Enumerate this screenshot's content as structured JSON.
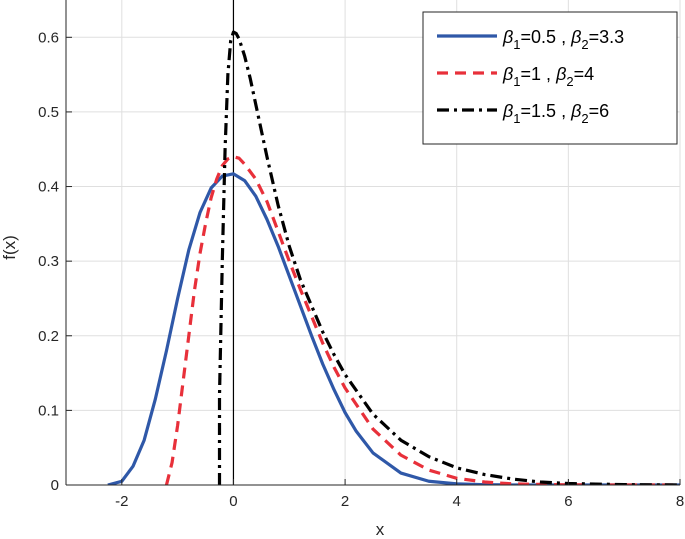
{
  "chart_data": {
    "type": "line",
    "title": "",
    "xlabel": "x",
    "ylabel": "f(x)",
    "xlim": [
      -3,
      8
    ],
    "ylim": [
      0,
      0.65
    ],
    "xticks": [
      -2,
      0,
      2,
      4,
      6,
      8
    ],
    "xtick_labels": [
      "-2",
      "0",
      "2",
      "4",
      "6",
      "8"
    ],
    "yticks": [
      0,
      0.1,
      0.2,
      0.3,
      0.4,
      0.5,
      0.6
    ],
    "ytick_labels": [
      "0",
      "0.1",
      "0.2",
      "0.3",
      "0.4",
      "0.5",
      "0.6"
    ],
    "grid": true,
    "legend_position": "top-right",
    "series": [
      {
        "name": "β1=0.5 , β2=3.3",
        "legend": {
          "b1_label": "β",
          "b1_sub": "1",
          "b1_val": "=0.5 , ",
          "b2_label": "β",
          "b2_sub": "2",
          "b2_val": "=3.3"
        },
        "color": "#2f58a8",
        "style": "solid",
        "x": [
          -2.25,
          -2.0,
          -1.8,
          -1.6,
          -1.4,
          -1.2,
          -1.0,
          -0.8,
          -0.6,
          -0.4,
          -0.2,
          0.0,
          0.2,
          0.4,
          0.6,
          0.8,
          1.0,
          1.2,
          1.4,
          1.6,
          1.8,
          2.0,
          2.2,
          2.5,
          3.0,
          3.5,
          4.0,
          4.5,
          5.0,
          6.0,
          7.0,
          8.0
        ],
        "y": [
          0.0,
          0.005,
          0.025,
          0.06,
          0.115,
          0.18,
          0.25,
          0.315,
          0.365,
          0.398,
          0.414,
          0.417,
          0.408,
          0.387,
          0.356,
          0.32,
          0.28,
          0.24,
          0.2,
          0.162,
          0.128,
          0.097,
          0.072,
          0.043,
          0.016,
          0.005,
          0.0015,
          0.0004,
          0.0001,
          0.0,
          0.0,
          0.0
        ]
      },
      {
        "name": "β1=1 , β2=4",
        "legend": {
          "b1_label": "β",
          "b1_sub": "1",
          "b1_val": "=1 , ",
          "b2_label": "β",
          "b2_sub": "2",
          "b2_val": "=4"
        },
        "color": "#e8303a",
        "style": "dashed",
        "x": [
          -1.2,
          -1.1,
          -1.0,
          -0.9,
          -0.8,
          -0.7,
          -0.6,
          -0.5,
          -0.4,
          -0.3,
          -0.2,
          -0.1,
          0.0,
          0.1,
          0.2,
          0.4,
          0.6,
          0.8,
          1.0,
          1.2,
          1.4,
          1.6,
          1.8,
          2.0,
          2.5,
          3.0,
          3.5,
          4.0,
          4.5,
          5.0,
          6.0,
          7.0,
          8.0
        ],
        "y": [
          0.0,
          0.03,
          0.08,
          0.14,
          0.2,
          0.26,
          0.31,
          0.35,
          0.385,
          0.41,
          0.428,
          0.437,
          0.44,
          0.438,
          0.43,
          0.41,
          0.38,
          0.34,
          0.3,
          0.262,
          0.226,
          0.19,
          0.158,
          0.13,
          0.075,
          0.04,
          0.02,
          0.009,
          0.004,
          0.0015,
          0.0002,
          0.0,
          0.0
        ]
      },
      {
        "name": "β1=1.5 , β2=6",
        "legend": {
          "b1_label": "β",
          "b1_sub": "1",
          "b1_val": "=1.5 , ",
          "b2_label": "β",
          "b2_sub": "2",
          "b2_val": "=6"
        },
        "color": "#000000",
        "style": "dashdot",
        "x": [
          -0.25,
          -0.25,
          -0.2,
          -0.15,
          -0.1,
          -0.05,
          0.0,
          0.05,
          0.1,
          0.2,
          0.3,
          0.4,
          0.6,
          0.8,
          1.0,
          1.2,
          1.4,
          1.6,
          1.8,
          2.0,
          2.5,
          3.0,
          3.5,
          4.0,
          4.5,
          5.0,
          5.5,
          6.0,
          7.0,
          8.0
        ],
        "y": [
          0.0,
          0.12,
          0.3,
          0.45,
          0.55,
          0.595,
          0.607,
          0.605,
          0.598,
          0.575,
          0.545,
          0.51,
          0.44,
          0.375,
          0.32,
          0.275,
          0.24,
          0.205,
          0.175,
          0.148,
          0.095,
          0.06,
          0.038,
          0.023,
          0.014,
          0.008,
          0.004,
          0.002,
          0.0005,
          0.0
        ]
      }
    ],
    "reference_line": {
      "x": 0,
      "color": "#000000"
    }
  }
}
